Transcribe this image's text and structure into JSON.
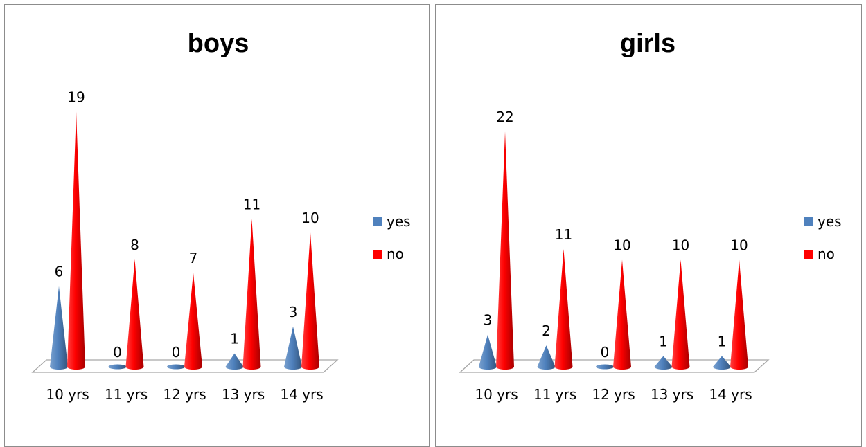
{
  "colors": {
    "yes": "#4f81bd",
    "no": "#ff0000"
  },
  "chart_data": [
    {
      "type": "bar",
      "title": "boys",
      "categories": [
        "10 yrs",
        "11 yrs",
        "12 yrs",
        "13 yrs",
        "14 yrs"
      ],
      "series": [
        {
          "name": "yes",
          "values": [
            6,
            0,
            0,
            1,
            3
          ]
        },
        {
          "name": "no",
          "values": [
            19,
            8,
            7,
            11,
            10
          ]
        }
      ],
      "legend": "right",
      "grid": false
    },
    {
      "type": "bar",
      "title": "girls",
      "categories": [
        "10 yrs",
        "11 yrs",
        "12 yrs",
        "13 yrs",
        "14 yrs"
      ],
      "series": [
        {
          "name": "yes",
          "values": [
            3,
            2,
            0,
            1,
            1
          ]
        },
        {
          "name": "no",
          "values": [
            22,
            11,
            10,
            10,
            10
          ]
        }
      ],
      "legend": "right",
      "grid": false
    }
  ]
}
